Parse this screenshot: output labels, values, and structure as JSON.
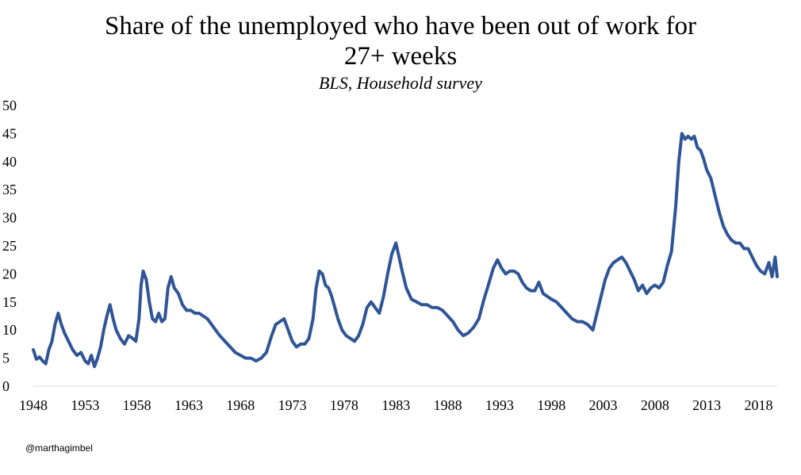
{
  "chart_data": {
    "type": "line",
    "title_line1": "Share of the unemployed who have been out of work for",
    "title_line2": "27+ weeks",
    "subtitle": "BLS, Household survey",
    "xlabel": "",
    "ylabel": "",
    "xlim": [
      1948,
      2019.8
    ],
    "ylim": [
      0,
      50
    ],
    "x_ticks": [
      "1948",
      "1953",
      "1958",
      "1963",
      "1968",
      "1973",
      "1978",
      "1983",
      "1988",
      "1993",
      "1998",
      "2003",
      "2008",
      "2013",
      "2018"
    ],
    "y_ticks": [
      "0",
      "5",
      "10",
      "15",
      "20",
      "25",
      "30",
      "35",
      "40",
      "45",
      "50"
    ],
    "grid": false,
    "legend": "none",
    "series": [
      {
        "color": "#2f5597",
        "x": [
          1948.0,
          1948.3,
          1948.6,
          1948.9,
          1949.2,
          1949.5,
          1949.8,
          1950.1,
          1950.4,
          1950.7,
          1951.0,
          1951.4,
          1951.8,
          1952.2,
          1952.6,
          1953.0,
          1953.3,
          1953.6,
          1953.9,
          1954.2,
          1954.5,
          1954.8,
          1955.1,
          1955.4,
          1955.7,
          1956.0,
          1956.4,
          1956.8,
          1957.2,
          1957.6,
          1957.9,
          1958.2,
          1958.4,
          1958.6,
          1958.9,
          1959.2,
          1959.5,
          1959.8,
          1960.1,
          1960.4,
          1960.7,
          1961.0,
          1961.3,
          1961.6,
          1962.0,
          1962.4,
          1962.8,
          1963.2,
          1963.6,
          1964.0,
          1964.4,
          1964.8,
          1965.2,
          1965.6,
          1966.0,
          1966.5,
          1967.0,
          1967.5,
          1968.0,
          1968.5,
          1969.0,
          1969.5,
          1970.0,
          1970.5,
          1971.0,
          1971.4,
          1971.8,
          1972.2,
          1972.6,
          1973.0,
          1973.4,
          1973.8,
          1974.2,
          1974.6,
          1975.0,
          1975.3,
          1975.6,
          1975.9,
          1976.2,
          1976.5,
          1976.8,
          1977.1,
          1977.4,
          1977.8,
          1978.2,
          1978.6,
          1979.0,
          1979.4,
          1979.8,
          1980.2,
          1980.6,
          1981.0,
          1981.4,
          1981.8,
          1982.2,
          1982.6,
          1983.0,
          1983.3,
          1983.6,
          1984.0,
          1984.5,
          1985.0,
          1985.5,
          1986.0,
          1986.5,
          1987.0,
          1987.5,
          1988.0,
          1988.5,
          1989.0,
          1989.5,
          1990.0,
          1990.5,
          1991.0,
          1991.5,
          1992.0,
          1992.4,
          1992.8,
          1993.2,
          1993.6,
          1994.0,
          1994.4,
          1994.8,
          1995.2,
          1995.6,
          1996.0,
          1996.4,
          1996.8,
          1997.2,
          1997.6,
          1998.0,
          1998.5,
          1999.0,
          1999.5,
          2000.0,
          2000.5,
          2001.0,
          2001.5,
          2002.0,
          2002.4,
          2002.8,
          2003.2,
          2003.6,
          2004.0,
          2004.4,
          2004.8,
          2005.2,
          2005.6,
          2006.0,
          2006.4,
          2006.8,
          2007.2,
          2007.6,
          2008.0,
          2008.4,
          2008.8,
          2009.2,
          2009.6,
          2010.0,
          2010.3,
          2010.6,
          2010.9,
          2011.2,
          2011.5,
          2011.8,
          2012.1,
          2012.4,
          2012.7,
          2013.0,
          2013.4,
          2013.8,
          2014.2,
          2014.6,
          2015.0,
          2015.4,
          2015.8,
          2016.2,
          2016.6,
          2017.0,
          2017.4,
          2017.8,
          2018.2,
          2018.6,
          2019.0,
          2019.3,
          2019.6,
          2019.8
        ],
        "y": [
          6.5,
          4.8,
          5.2,
          4.5,
          4.0,
          6.5,
          8.0,
          11.0,
          13.0,
          11.0,
          9.5,
          8.0,
          6.5,
          5.5,
          6.0,
          4.5,
          4.0,
          5.5,
          3.5,
          5.0,
          7.0,
          10.0,
          12.5,
          14.5,
          12.0,
          10.0,
          8.5,
          7.5,
          9.0,
          8.5,
          8.0,
          12.0,
          18.0,
          20.5,
          19.0,
          15.0,
          12.0,
          11.5,
          13.0,
          11.5,
          12.0,
          17.5,
          19.5,
          17.5,
          16.5,
          14.5,
          13.5,
          13.5,
          13.0,
          13.0,
          12.5,
          12.0,
          11.0,
          10.0,
          9.0,
          8.0,
          7.0,
          6.0,
          5.5,
          5.0,
          5.0,
          4.5,
          5.0,
          6.0,
          9.0,
          11.0,
          11.5,
          12.0,
          10.0,
          8.0,
          7.0,
          7.5,
          7.5,
          8.5,
          12.0,
          17.5,
          20.5,
          20.0,
          18.0,
          17.5,
          16.0,
          14.0,
          12.0,
          10.0,
          9.0,
          8.5,
          8.0,
          9.0,
          11.0,
          14.0,
          15.0,
          14.0,
          13.0,
          16.0,
          20.0,
          23.5,
          25.5,
          23.0,
          20.5,
          17.5,
          15.5,
          15.0,
          14.5,
          14.5,
          14.0,
          14.0,
          13.5,
          12.5,
          11.5,
          10.0,
          9.0,
          9.5,
          10.5,
          12.0,
          15.5,
          18.5,
          21.0,
          22.5,
          21.0,
          20.0,
          20.5,
          20.5,
          20.0,
          18.5,
          17.5,
          17.0,
          17.0,
          18.5,
          16.5,
          16.0,
          15.5,
          15.0,
          14.0,
          13.0,
          12.0,
          11.5,
          11.5,
          11.0,
          10.0,
          13.0,
          16.0,
          19.0,
          21.0,
          22.0,
          22.5,
          23.0,
          22.0,
          20.5,
          19.0,
          17.0,
          18.0,
          16.5,
          17.5,
          18.0,
          17.5,
          18.5,
          21.5,
          24.0,
          32.0,
          40.0,
          45.0,
          44.0,
          44.5,
          44.0,
          44.5,
          42.5,
          42.0,
          40.5,
          38.5,
          37.0,
          34.0,
          31.0,
          28.5,
          27.0,
          26.0,
          25.5,
          25.5,
          24.5,
          24.5,
          23.0,
          21.5,
          20.5,
          20.0,
          22.0,
          19.5,
          23.0,
          19.5
        ]
      }
    ]
  },
  "credit": "@marthagimbel"
}
